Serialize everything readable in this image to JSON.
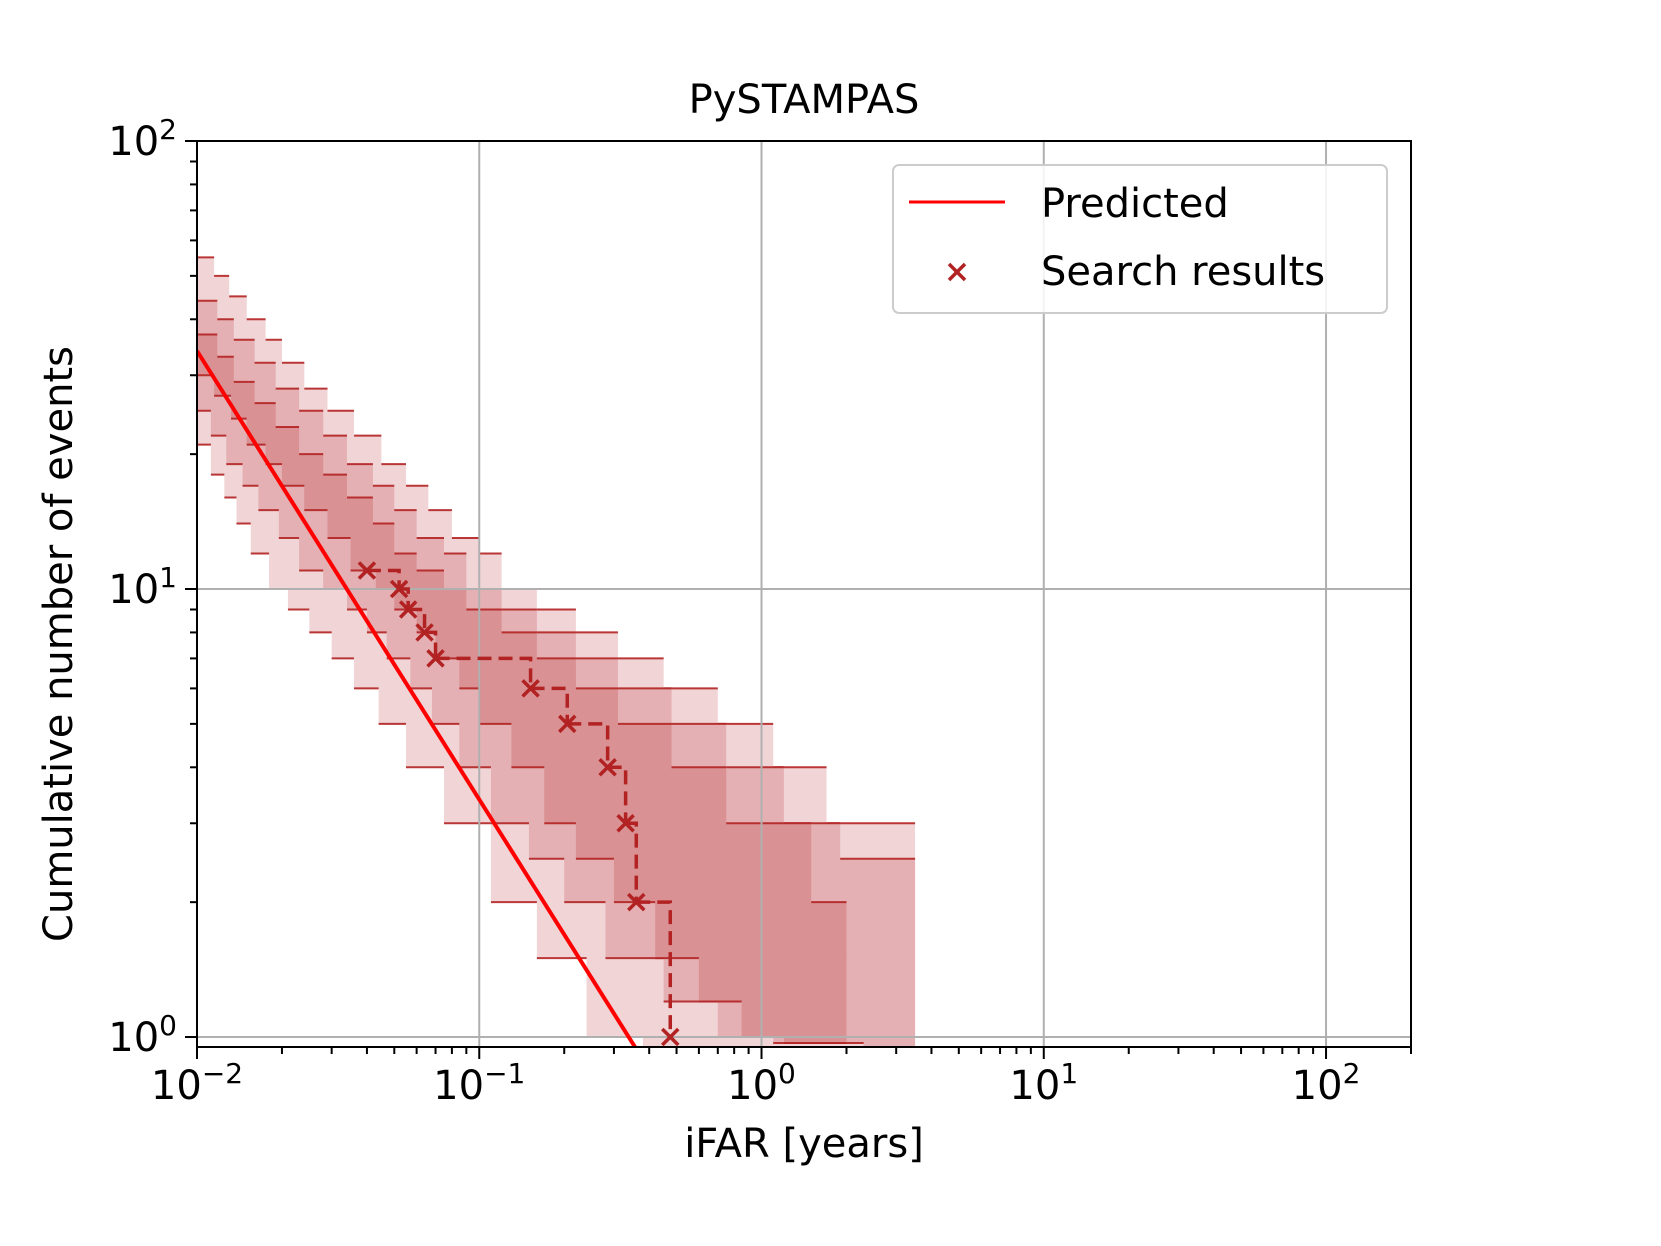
{
  "chart_data": {
    "type": "line",
    "title": "PySTAMPAS",
    "xlabel": "iFAR [years]",
    "ylabel": "Cumulative number of events",
    "xscale": "log",
    "yscale": "log",
    "xlim": [
      0.01,
      200
    ],
    "ylim": [
      0.95,
      100
    ],
    "grid": true,
    "legend_position": "top-right",
    "x_tick_labels": [
      {
        "value": 0.01,
        "base": "10",
        "exp": "−2"
      },
      {
        "value": 0.1,
        "base": "10",
        "exp": "−1"
      },
      {
        "value": 1,
        "base": "10",
        "exp": "0"
      },
      {
        "value": 10,
        "base": "10",
        "exp": "1"
      },
      {
        "value": 100,
        "base": "10",
        "exp": "2"
      }
    ],
    "y_tick_labels": [
      {
        "value": 1,
        "base": "10",
        "exp": "0"
      },
      {
        "value": 10,
        "base": "10",
        "exp": "1"
      },
      {
        "value": 100,
        "base": "10",
        "exp": "2"
      }
    ],
    "series": [
      {
        "name": "Predicted",
        "kind": "line",
        "color": "#ff0000",
        "points": [
          [
            0.01,
            34.0
          ],
          [
            0.36,
            0.94
          ]
        ]
      },
      {
        "name": "Search results",
        "kind": "markers-with-step",
        "color": "#b22222",
        "x": [
          0.04,
          0.052,
          0.056,
          0.064,
          0.07,
          0.152,
          0.205,
          0.285,
          0.33,
          0.36,
          0.475
        ],
        "y": [
          11,
          10,
          9,
          8,
          7,
          6,
          5,
          4,
          3,
          2,
          1
        ]
      }
    ],
    "confidence_bands": [
      {
        "name": "outer",
        "fill": "#f0d4d6",
        "upper": [
          [
            0.01,
            55
          ],
          [
            0.0115,
            50
          ],
          [
            0.013,
            45
          ],
          [
            0.015,
            40
          ],
          [
            0.0175,
            36
          ],
          [
            0.02,
            32
          ],
          [
            0.024,
            28
          ],
          [
            0.029,
            25
          ],
          [
            0.036,
            22
          ],
          [
            0.045,
            19
          ],
          [
            0.055,
            17
          ],
          [
            0.066,
            15
          ],
          [
            0.08,
            13
          ],
          [
            0.1,
            12
          ],
          [
            0.12,
            10
          ],
          [
            0.16,
            9
          ],
          [
            0.22,
            8
          ],
          [
            0.31,
            7
          ],
          [
            0.45,
            6
          ],
          [
            0.7,
            5
          ],
          [
            1.1,
            4
          ],
          [
            1.7,
            3
          ],
          [
            3.5,
            2.5
          ]
        ],
        "lower": [
          [
            0.01,
            21
          ],
          [
            0.0112,
            18
          ],
          [
            0.0125,
            16
          ],
          [
            0.0138,
            14
          ],
          [
            0.0155,
            12
          ],
          [
            0.018,
            10
          ],
          [
            0.021,
            9
          ],
          [
            0.025,
            8
          ],
          [
            0.03,
            7
          ],
          [
            0.036,
            6
          ],
          [
            0.044,
            5
          ],
          [
            0.055,
            4
          ],
          [
            0.075,
            3
          ],
          [
            0.11,
            2
          ],
          [
            0.16,
            1.5
          ],
          [
            0.24,
            1
          ],
          [
            0.38,
            0.95
          ],
          [
            2.5,
            0.95
          ]
        ]
      },
      {
        "name": "middle",
        "fill": "#e4b0b3",
        "upper": [
          [
            0.01,
            44
          ],
          [
            0.0118,
            40
          ],
          [
            0.0135,
            36
          ],
          [
            0.016,
            32
          ],
          [
            0.019,
            28
          ],
          [
            0.023,
            25
          ],
          [
            0.028,
            22
          ],
          [
            0.034,
            19
          ],
          [
            0.042,
            17
          ],
          [
            0.05,
            15
          ],
          [
            0.06,
            13
          ],
          [
            0.075,
            12
          ],
          [
            0.09,
            10
          ],
          [
            0.12,
            9
          ],
          [
            0.16,
            8
          ],
          [
            0.22,
            7
          ],
          [
            0.31,
            6
          ],
          [
            0.48,
            5
          ],
          [
            0.75,
            4
          ],
          [
            1.2,
            3
          ],
          [
            1.9,
            2.5
          ],
          [
            3.5,
            1.5
          ]
        ],
        "lower": [
          [
            0.01,
            25
          ],
          [
            0.0112,
            22
          ],
          [
            0.0127,
            19
          ],
          [
            0.0145,
            17
          ],
          [
            0.0165,
            15
          ],
          [
            0.0195,
            13
          ],
          [
            0.023,
            11
          ],
          [
            0.028,
            10
          ],
          [
            0.034,
            9
          ],
          [
            0.04,
            8
          ],
          [
            0.047,
            7
          ],
          [
            0.057,
            6
          ],
          [
            0.068,
            5
          ],
          [
            0.085,
            4
          ],
          [
            0.11,
            3
          ],
          [
            0.15,
            2.5
          ],
          [
            0.2,
            2
          ],
          [
            0.28,
            1.5
          ],
          [
            0.45,
            1.2
          ],
          [
            0.7,
            1
          ],
          [
            1.1,
            0.97
          ],
          [
            2.3,
            0.95
          ]
        ]
      },
      {
        "name": "inner",
        "fill": "#d99194",
        "upper": [
          [
            0.01,
            37
          ],
          [
            0.0118,
            33
          ],
          [
            0.0135,
            29
          ],
          [
            0.016,
            26
          ],
          [
            0.019,
            23
          ],
          [
            0.023,
            20
          ],
          [
            0.028,
            18
          ],
          [
            0.034,
            16
          ],
          [
            0.042,
            14
          ],
          [
            0.05,
            12
          ],
          [
            0.06,
            11
          ],
          [
            0.075,
            10
          ],
          [
            0.09,
            9
          ],
          [
            0.12,
            8
          ],
          [
            0.16,
            7
          ],
          [
            0.22,
            6
          ],
          [
            0.31,
            5
          ],
          [
            0.48,
            4
          ],
          [
            0.75,
            3
          ],
          [
            1.5,
            2
          ],
          [
            2,
            1.5
          ]
        ],
        "lower": [
          [
            0.01,
            30
          ],
          [
            0.0115,
            27
          ],
          [
            0.0132,
            24
          ],
          [
            0.015,
            21
          ],
          [
            0.0175,
            19
          ],
          [
            0.02,
            17
          ],
          [
            0.024,
            15
          ],
          [
            0.029,
            13
          ],
          [
            0.035,
            11
          ],
          [
            0.043,
            10
          ],
          [
            0.05,
            9
          ],
          [
            0.06,
            8
          ],
          [
            0.07,
            7
          ],
          [
            0.085,
            6
          ],
          [
            0.1,
            5
          ],
          [
            0.13,
            4
          ],
          [
            0.17,
            3
          ],
          [
            0.22,
            2.5
          ],
          [
            0.3,
            2
          ],
          [
            0.42,
            1.5
          ],
          [
            0.6,
            1.2
          ],
          [
            0.85,
            1
          ],
          [
            1.2,
            0.97
          ],
          [
            2,
            0.95
          ]
        ]
      }
    ],
    "legend": [
      {
        "label": "Predicted",
        "symbol": "line",
        "color": "#ff0000"
      },
      {
        "label": "Search results",
        "symbol": "x",
        "color": "#b22222"
      }
    ]
  }
}
